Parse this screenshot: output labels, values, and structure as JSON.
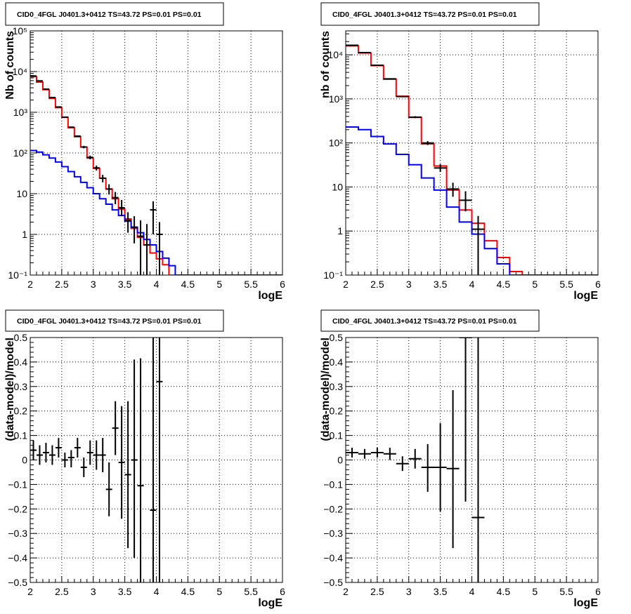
{
  "chart_data": [
    {
      "type": "step",
      "title": "CID0_4FGL J0401.3+0412 TS=43.72 PS=0.01 PS=0.01",
      "xlabel": "logE",
      "ylabel": "Nb of counts",
      "xlim": [
        2,
        6
      ],
      "ylim": [
        0.1,
        100000
      ],
      "yscale": "log",
      "grid": true,
      "x_ticks": [
        "2",
        "2.5",
        "3",
        "3.5",
        "4",
        "4.5",
        "5",
        "5.5",
        "6"
      ],
      "y_ticks": [
        "10⁻¹",
        "1",
        "10",
        "10²",
        "10³",
        "10⁴",
        "10⁵"
      ],
      "bin_edges": [
        2.0,
        2.1,
        2.2,
        2.3,
        2.4,
        2.5,
        2.6,
        2.7,
        2.8,
        2.9,
        3.0,
        3.1,
        3.2,
        3.3,
        3.4,
        3.5,
        3.6,
        3.7,
        3.8,
        3.9,
        4.0,
        4.1,
        4.2,
        4.3,
        4.4,
        4.5,
        4.6,
        4.7,
        4.8,
        4.9,
        5.0,
        5.1,
        5.2,
        5.3,
        5.4,
        5.5,
        5.6,
        5.7,
        5.8,
        5.9,
        6.0
      ],
      "series": [
        {
          "color": "#ff0000",
          "kind": "step",
          "values": [
            7500,
            5500,
            3600,
            2200,
            1300,
            750,
            420,
            250,
            140,
            75,
            42,
            24,
            13,
            7.5,
            4.2,
            2.4,
            1.4,
            0.85,
            0.55,
            0.35,
            0.25,
            0.18,
            0.1,
            0.1,
            0.1,
            0.1,
            0.1,
            0.1,
            0.1,
            0.1,
            0.1,
            0.1,
            0.1,
            0.1,
            0.1,
            0.1,
            0.1,
            0.1,
            0.1,
            0.1
          ]
        },
        {
          "color": "#0000ff",
          "kind": "step",
          "values": [
            115,
            105,
            90,
            75,
            60,
            46,
            35,
            26,
            19,
            14,
            10,
            7.5,
            5.5,
            4,
            2.9,
            2.1,
            1.5,
            1.1,
            0.75,
            0.55,
            0.38,
            0.26,
            0.17,
            0.1,
            0.1,
            0.1,
            0.1,
            0.1,
            0.1,
            0.1,
            0.1,
            0.1,
            0.1,
            0.1,
            0.1,
            0.1,
            0.1,
            0.1,
            0.1,
            0.1
          ]
        },
        {
          "color": "#000000",
          "kind": "points",
          "x": [
            2.05,
            2.15,
            2.25,
            2.35,
            2.45,
            2.55,
            2.65,
            2.75,
            2.85,
            2.95,
            3.05,
            3.15,
            3.25,
            3.35,
            3.45,
            3.55,
            3.65,
            3.75,
            3.85,
            3.95,
            4.05
          ],
          "values": [
            7800,
            5900,
            3700,
            2300,
            1350,
            760,
            430,
            260,
            140,
            78,
            43,
            24,
            13,
            8,
            4.5,
            2.2,
            1.5,
            0.9,
            0.55,
            4,
            1
          ],
          "err_low": [
            7700,
            5800,
            3640,
            2250,
            1320,
            740,
            415,
            250,
            130,
            70,
            37,
            19,
            9.5,
            5.5,
            2.8,
            1.1,
            0.6,
            0,
            0,
            1,
            0
          ],
          "err_high": [
            7900,
            6000,
            3760,
            2350,
            1380,
            780,
            445,
            270,
            150,
            86,
            49,
            29,
            17,
            11,
            7,
            3.5,
            2.8,
            2.2,
            1.8,
            6.5,
            2
          ]
        }
      ]
    },
    {
      "type": "step",
      "title": "CID0_4FGL J0401.3+0412 TS=43.72 PS=0.01 PS=0.01",
      "xlabel": "logE",
      "ylabel": "nb of counts",
      "xlim": [
        2,
        6
      ],
      "ylim": [
        0.1,
        35000
      ],
      "yscale": "log",
      "grid": true,
      "x_ticks": [
        "2",
        "2.5",
        "3",
        "3.5",
        "4",
        "4.5",
        "5",
        "5.5",
        "6"
      ],
      "y_ticks": [
        "10⁻¹",
        "1",
        "10",
        "10²",
        "10³",
        "10⁴"
      ],
      "bin_edges": [
        2.0,
        2.2,
        2.4,
        2.6,
        2.8,
        3.0,
        3.2,
        3.4,
        3.6,
        3.8,
        4.0,
        4.2,
        4.4,
        4.6,
        4.8,
        5.0,
        5.2,
        5.4,
        5.6,
        5.8,
        6.0
      ],
      "series": [
        {
          "color": "#ff0000",
          "kind": "step",
          "values": [
            16000,
            11000,
            5700,
            2800,
            1150,
            380,
            95,
            30,
            8.5,
            3,
            1.5,
            0.6,
            0.25,
            0.12,
            0.1,
            0.1,
            0.1,
            0.1,
            0.1,
            0.1
          ]
        },
        {
          "color": "#0000ff",
          "kind": "step",
          "values": [
            230,
            200,
            140,
            95,
            55,
            32,
            16,
            8.5,
            3.5,
            1.6,
            0.85,
            0.4,
            0.18,
            0.1,
            0.1,
            0.1,
            0.1,
            0.1,
            0.1,
            0.1
          ]
        },
        {
          "color": "#000000",
          "kind": "points",
          "x": [
            2.1,
            2.3,
            2.5,
            2.7,
            2.9,
            3.1,
            3.3,
            3.5,
            3.7,
            3.9,
            4.1
          ],
          "values": [
            16500,
            11200,
            5800,
            2850,
            1130,
            385,
            100,
            27,
            9,
            5,
            1.1
          ],
          "err_low": [
            16350,
            11050,
            5700,
            2780,
            1090,
            365,
            90,
            22,
            6,
            2.8,
            0
          ],
          "err_high": [
            16650,
            11350,
            5900,
            2920,
            1170,
            405,
            110,
            33,
            12.5,
            8,
            2.2
          ]
        }
      ]
    },
    {
      "type": "scatter",
      "title": "CID0_4FGL J0401.3+0412 TS=43.72 PS=0.01 PS=0.01",
      "xlabel": "logE",
      "ylabel": "(data-model)/model",
      "xlim": [
        2,
        6
      ],
      "ylim": [
        -0.5,
        0.5
      ],
      "yscale": "linear",
      "grid": true,
      "x_ticks": [
        "2",
        "2.5",
        "3",
        "3.5",
        "4",
        "4.5",
        "5",
        "5.5",
        "6"
      ],
      "y_ticks": [
        "−0.5",
        "−0.4",
        "−0.3",
        "−0.2",
        "−0.1",
        "0",
        "0.1",
        "0.2",
        "0.3",
        "0.4",
        "0.5"
      ],
      "series": [
        {
          "color": "#000000",
          "kind": "points",
          "x": [
            2.05,
            2.15,
            2.25,
            2.35,
            2.45,
            2.55,
            2.65,
            2.75,
            2.85,
            2.95,
            3.05,
            3.15,
            3.25,
            3.35,
            3.45,
            3.55,
            3.65,
            3.75,
            3.95,
            4.05
          ],
          "values": [
            0.04,
            0.02,
            0.03,
            0.02,
            0.05,
            0.0,
            0.01,
            0.05,
            -0.03,
            0.03,
            0.02,
            0.02,
            -0.12,
            0.13,
            -0.01,
            -0.06,
            0.0,
            -0.105,
            -0.205,
            0.32
          ],
          "err_low": [
            0.0,
            -0.02,
            -0.01,
            -0.02,
            0.01,
            -0.03,
            -0.03,
            0.01,
            -0.07,
            -0.02,
            -0.04,
            -0.05,
            -0.23,
            0.02,
            -0.24,
            -0.36,
            -0.4,
            -0.5,
            -0.5,
            -0.5
          ],
          "err_high": [
            0.08,
            0.06,
            0.07,
            0.06,
            0.09,
            0.03,
            0.04,
            0.09,
            0.01,
            0.08,
            0.08,
            0.09,
            -0.01,
            0.24,
            0.22,
            0.24,
            0.41,
            0.415,
            0.5,
            0.5
          ]
        }
      ]
    },
    {
      "type": "scatter",
      "title": "CID0_4FGL J0401.3+0412 TS=43.72 PS=0.01 PS=0.01",
      "xlabel": "logE",
      "ylabel": "(data-model)/model",
      "xlim": [
        2,
        6
      ],
      "ylim": [
        -0.5,
        0.5
      ],
      "yscale": "linear",
      "grid": true,
      "x_ticks": [
        "2",
        "2.5",
        "3",
        "3.5",
        "4",
        "4.5",
        "5",
        "5.5",
        "6"
      ],
      "y_ticks": [
        "−0.5",
        "−0.4",
        "−0.3",
        "−0.2",
        "−0.1",
        "0",
        "0.1",
        "0.2",
        "0.3",
        "0.4",
        "0.5"
      ],
      "series": [
        {
          "color": "#000000",
          "kind": "points",
          "x": [
            2.1,
            2.3,
            2.5,
            2.7,
            2.9,
            3.1,
            3.3,
            3.5,
            3.7,
            3.9,
            4.1
          ],
          "values": [
            0.03,
            0.025,
            0.03,
            0.025,
            -0.015,
            0.005,
            -0.03,
            -0.03,
            -0.035,
            0.5,
            -0.235
          ],
          "err_low": [
            0.01,
            0.005,
            0.01,
            0.0,
            -0.045,
            -0.035,
            -0.13,
            -0.21,
            -0.36,
            -0.17,
            -0.5
          ],
          "err_high": [
            0.05,
            0.045,
            0.05,
            0.05,
            0.015,
            0.045,
            0.065,
            0.15,
            0.285,
            0.5,
            0.5
          ]
        }
      ]
    }
  ]
}
